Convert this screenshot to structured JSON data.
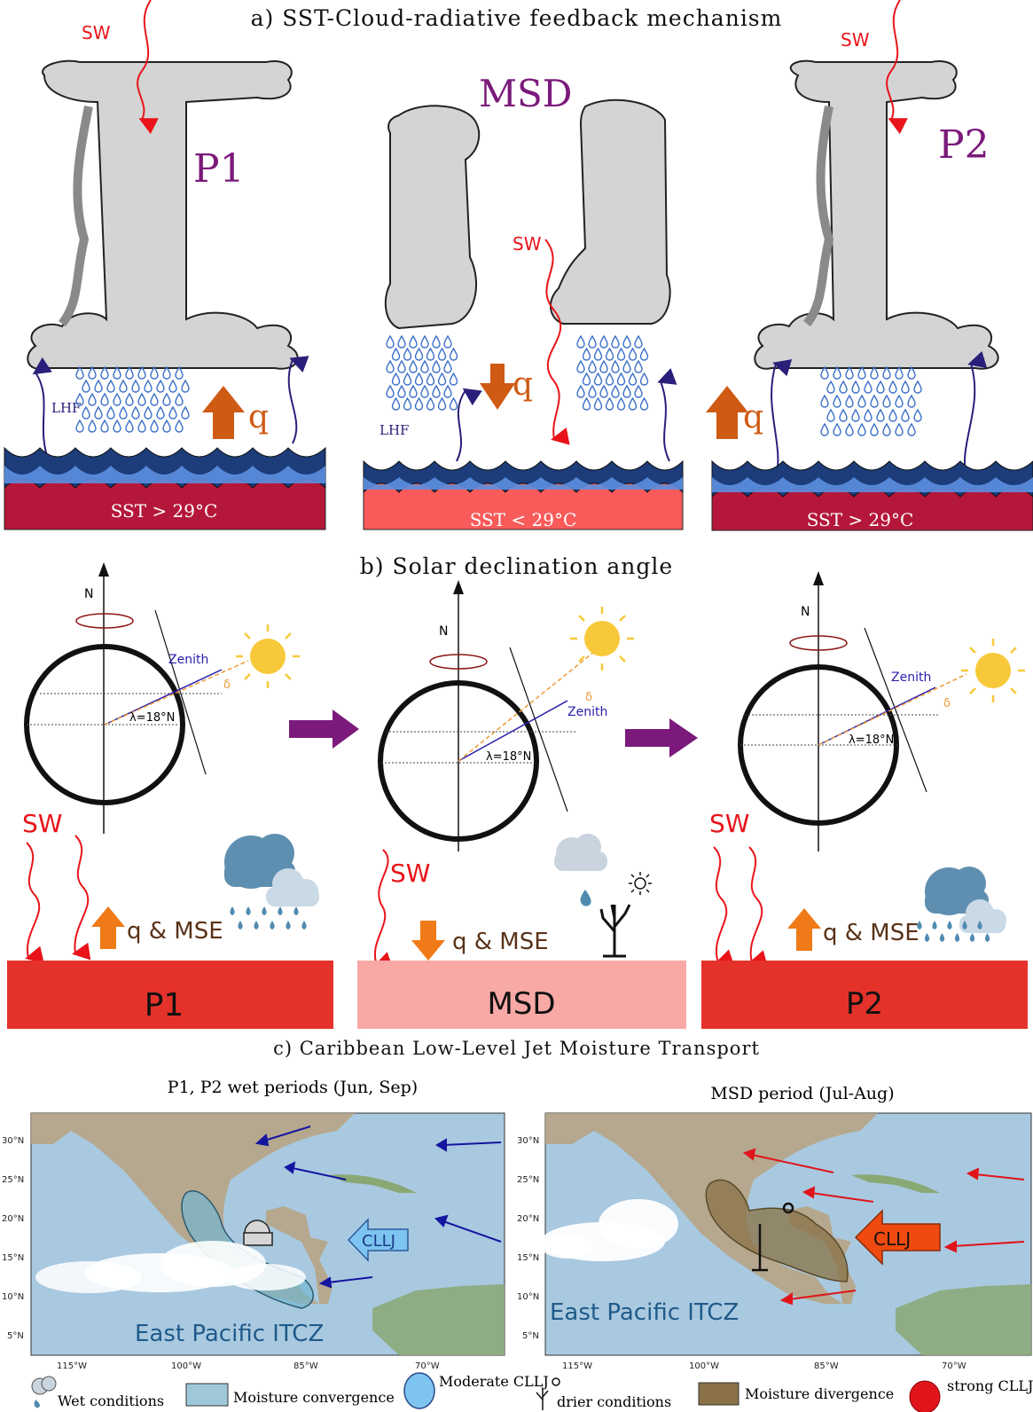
{
  "panel_a": {
    "title": "a) SST-Cloud-radiative feedback mechanism",
    "sw": "SW",
    "lhf": "LHF",
    "q": "q",
    "p1": "P1",
    "msd": "MSD",
    "p2": "P2",
    "sst_warm": "SST > 29°C",
    "sst_cool": "SST < 29°C"
  },
  "panel_b": {
    "title": "b) Solar declination angle",
    "north": "N",
    "zenith": "Zenith",
    "delta": "δ",
    "latitude": "λ=18°N",
    "sw": "SW",
    "q_mse": "q & MSE",
    "p1": "P1",
    "msd": "MSD",
    "p2": "P2"
  },
  "panel_c": {
    "title": "c) Caribbean Low-Level Jet Moisture Transport",
    "left_title": "P1, P2 wet periods (Jun, Sep)",
    "right_title": "MSD period (Jul-Aug)",
    "itcz": "East Pacific ITCZ",
    "cllj": "CLLJ",
    "lat_ticks": [
      "30°N",
      "25°N",
      "20°N",
      "15°N",
      "10°N",
      "5°N"
    ],
    "lon_ticks": [
      "115°W",
      "100°W",
      "85°W",
      "70°W"
    ]
  },
  "legend": {
    "wet": "Wet conditions",
    "convergence": "Moisture convergence",
    "moderate": "Moderate CLLJ",
    "drier": "drier conditions",
    "divergence": "Moisture divergence",
    "strong": "strong CLLJ"
  },
  "colors": {
    "warm_sst": "#b5173a",
    "cool_sst": "#f95a5a",
    "purple": "#7b1a7b",
    "sw_red": "#e8141a",
    "q_orange": "#cf5a14",
    "surface_red": "#e4322b",
    "surface_pink": "#f8a9a6"
  }
}
